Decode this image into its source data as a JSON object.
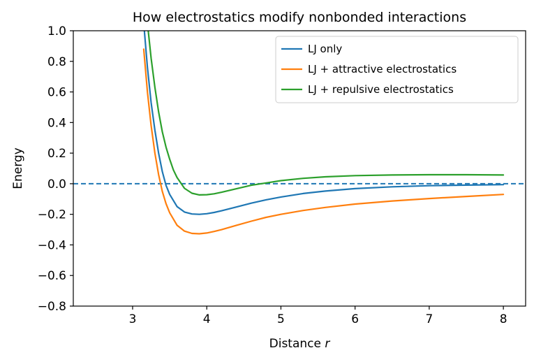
{
  "chart_data": {
    "type": "line",
    "title": "How electrostatics modify nonbonded interactions",
    "xlabel": "Distance",
    "xlabel_var": "r",
    "ylabel": "Energy",
    "xlim": [
      2.2,
      8.3
    ],
    "ylim": [
      -0.8,
      1.0
    ],
    "xticks": [
      3,
      4,
      5,
      6,
      7,
      8
    ],
    "xtick_labels": [
      "3",
      "4",
      "5",
      "6",
      "7",
      "8"
    ],
    "yticks": [
      -0.8,
      -0.6,
      -0.4,
      -0.2,
      0.0,
      0.2,
      0.4,
      0.6,
      0.8,
      1.0
    ],
    "ytick_labels": [
      "−0.8",
      "−0.6",
      "−0.4",
      "−0.2",
      "0.0",
      "0.2",
      "0.4",
      "0.6",
      "0.8",
      "1.0"
    ],
    "grid": false,
    "legend_position": "top-right",
    "reference_line": {
      "y": 0.0,
      "style": "dashed",
      "color": "#1f77b4"
    },
    "series": [
      {
        "name": "LJ only",
        "color": "#1f77b4",
        "x": [
          3.15,
          3.2,
          3.25,
          3.3,
          3.35,
          3.4,
          3.45,
          3.5,
          3.6,
          3.7,
          3.8,
          3.9,
          4.0,
          4.1,
          4.2,
          4.4,
          4.6,
          4.8,
          5.0,
          5.3,
          5.6,
          6.0,
          6.5,
          7.0,
          7.5,
          8.0
        ],
        "y": [
          1.05,
          0.76,
          0.53,
          0.35,
          0.2,
          0.08,
          -0.01,
          -0.07,
          -0.15,
          -0.185,
          -0.198,
          -0.2,
          -0.196,
          -0.188,
          -0.177,
          -0.152,
          -0.127,
          -0.105,
          -0.087,
          -0.064,
          -0.048,
          -0.032,
          -0.02,
          -0.013,
          -0.009,
          -0.006
        ]
      },
      {
        "name": "LJ + attractive electrostatics",
        "color": "#ff7f0e",
        "x": [
          3.15,
          3.2,
          3.25,
          3.3,
          3.35,
          3.4,
          3.45,
          3.5,
          3.6,
          3.7,
          3.8,
          3.9,
          4.0,
          4.1,
          4.2,
          4.4,
          4.6,
          4.8,
          5.0,
          5.3,
          5.6,
          6.0,
          6.5,
          7.0,
          7.5,
          8.0
        ],
        "y": [
          0.88,
          0.6,
          0.38,
          0.2,
          0.06,
          -0.05,
          -0.13,
          -0.19,
          -0.272,
          -0.31,
          -0.325,
          -0.327,
          -0.322,
          -0.312,
          -0.3,
          -0.272,
          -0.245,
          -0.22,
          -0.2,
          -0.175,
          -0.155,
          -0.133,
          -0.113,
          -0.097,
          -0.083,
          -0.07
        ]
      },
      {
        "name": "LJ + repulsive electrostatics",
        "color": "#2ca02c",
        "x": [
          3.2,
          3.25,
          3.3,
          3.35,
          3.4,
          3.45,
          3.5,
          3.55,
          3.6,
          3.7,
          3.8,
          3.9,
          4.0,
          4.1,
          4.2,
          4.4,
          4.6,
          4.8,
          5.0,
          5.3,
          5.6,
          6.0,
          6.5,
          7.0,
          7.5,
          8.0
        ],
        "y": [
          1.05,
          0.82,
          0.63,
          0.47,
          0.34,
          0.24,
          0.16,
          0.09,
          0.04,
          -0.03,
          -0.062,
          -0.073,
          -0.072,
          -0.066,
          -0.056,
          -0.033,
          -0.01,
          0.005,
          0.02,
          0.035,
          0.045,
          0.053,
          0.057,
          0.059,
          0.059,
          0.057
        ]
      }
    ]
  }
}
